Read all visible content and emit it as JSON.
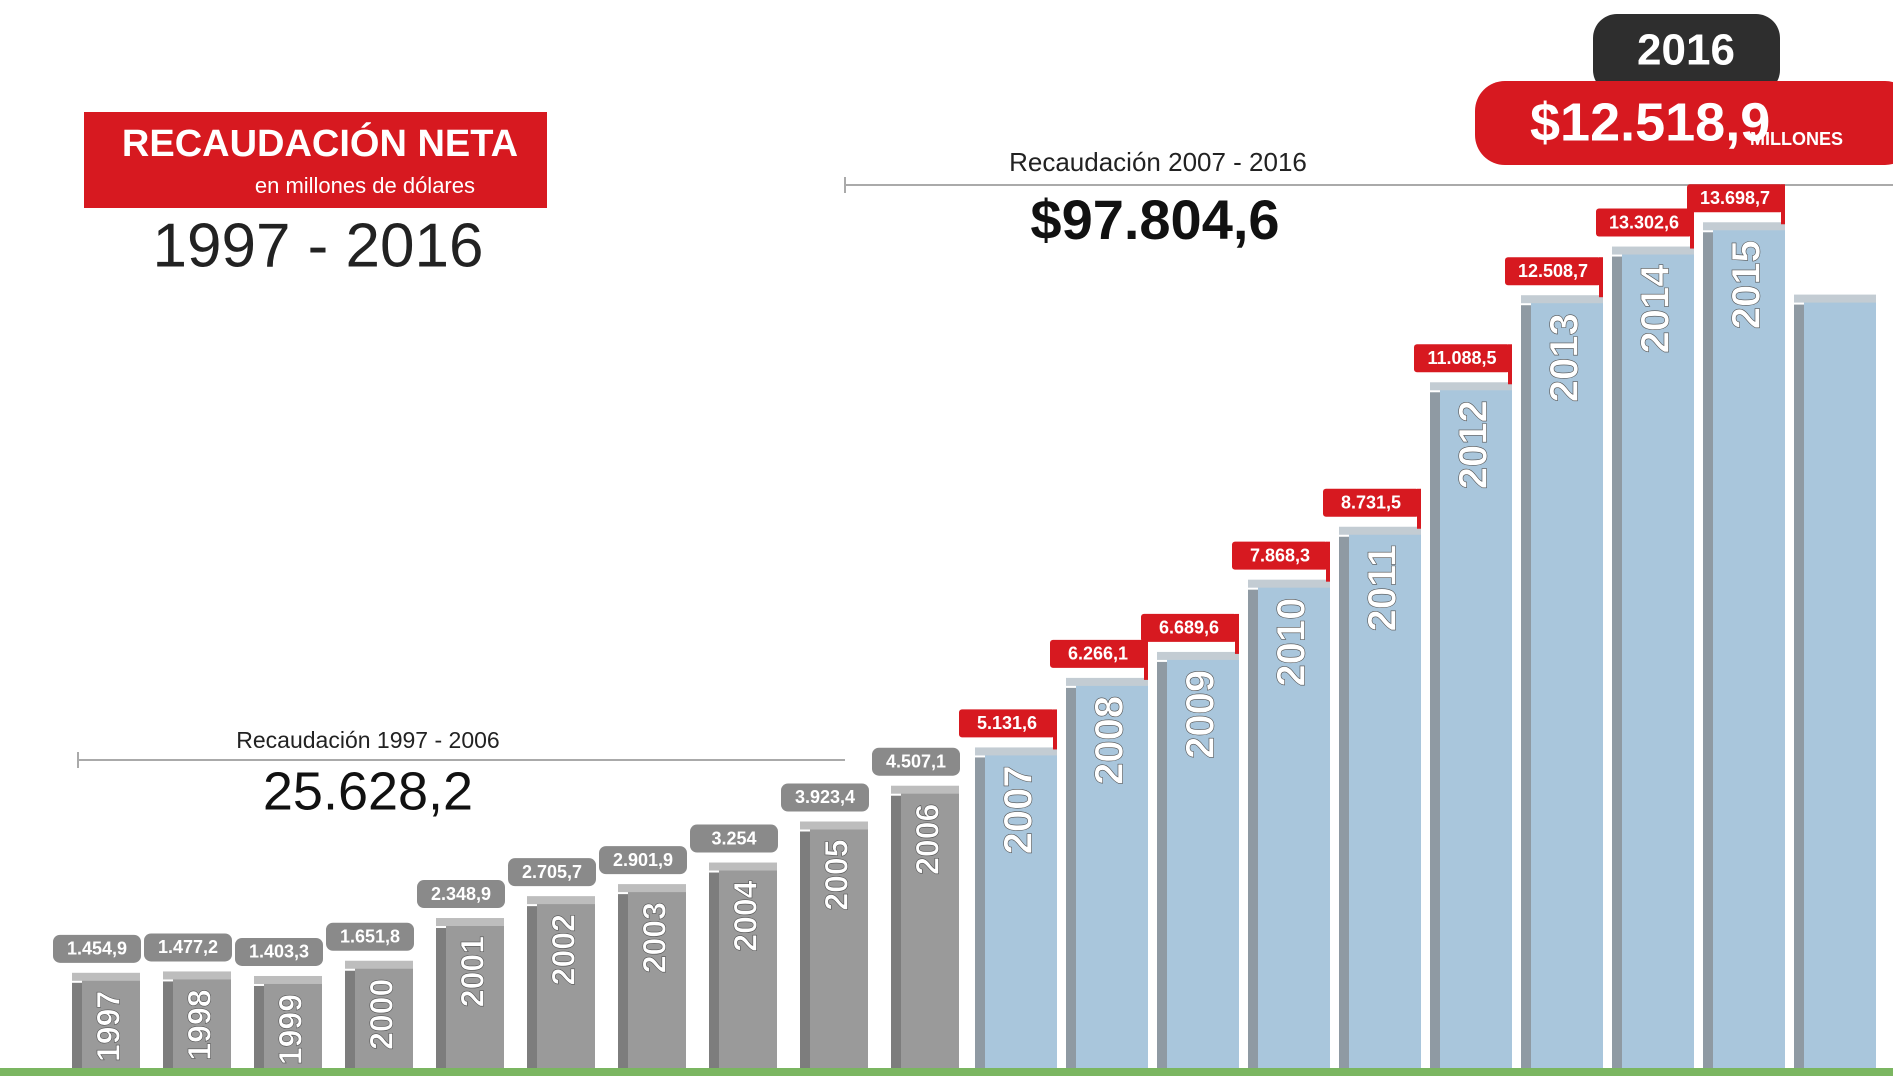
{
  "chart_data": {
    "type": "bar",
    "title": "RECAUDACIÓN NETA",
    "subtitle": "en millones de dólares",
    "period": "1997 - 2016",
    "unit_label": "MILLONES",
    "annotations": [
      {
        "text": "Recaudación 1997 - 2006",
        "value": "25.628,2"
      },
      {
        "text": "Recaudación 2007 - 2016",
        "value": "$97.804,6"
      }
    ],
    "categories": [
      "1997",
      "1998",
      "1999",
      "2000",
      "2001",
      "2002",
      "2003",
      "2004",
      "2005",
      "2006",
      "2007",
      "2008",
      "2009",
      "2010",
      "2011",
      "2012",
      "2013",
      "2014",
      "2015",
      "2016"
    ],
    "values": [
      1454.9,
      1477.2,
      1403.3,
      1651.8,
      2348.9,
      2705.7,
      2901.9,
      3254,
      3923.4,
      4507.1,
      5131.6,
      6266.1,
      6689.6,
      7868.3,
      8731.5,
      11088.5,
      12508.7,
      13302.6,
      13698.7,
      12518.9
    ],
    "value_labels": [
      "1.454,9",
      "1.477,2",
      "1.403,3",
      "1.651,8",
      "2.348,9",
      "2.705,7",
      "2.901,9",
      "3.254",
      "3.923,4",
      "4.507,1",
      "5.131,6",
      "6.266,1",
      "6.689,6",
      "7.868,3",
      "8.731,5",
      "11.088,5",
      "12.508,7",
      "13.302,6",
      "13.698,7",
      "$12.518,9"
    ],
    "colors": {
      "early": "#9a9a9a",
      "late": "#a9c6dc",
      "tag_early": "#8a8a8a",
      "tag_late": "#d71920",
      "badge": "#2e2e2e"
    }
  }
}
